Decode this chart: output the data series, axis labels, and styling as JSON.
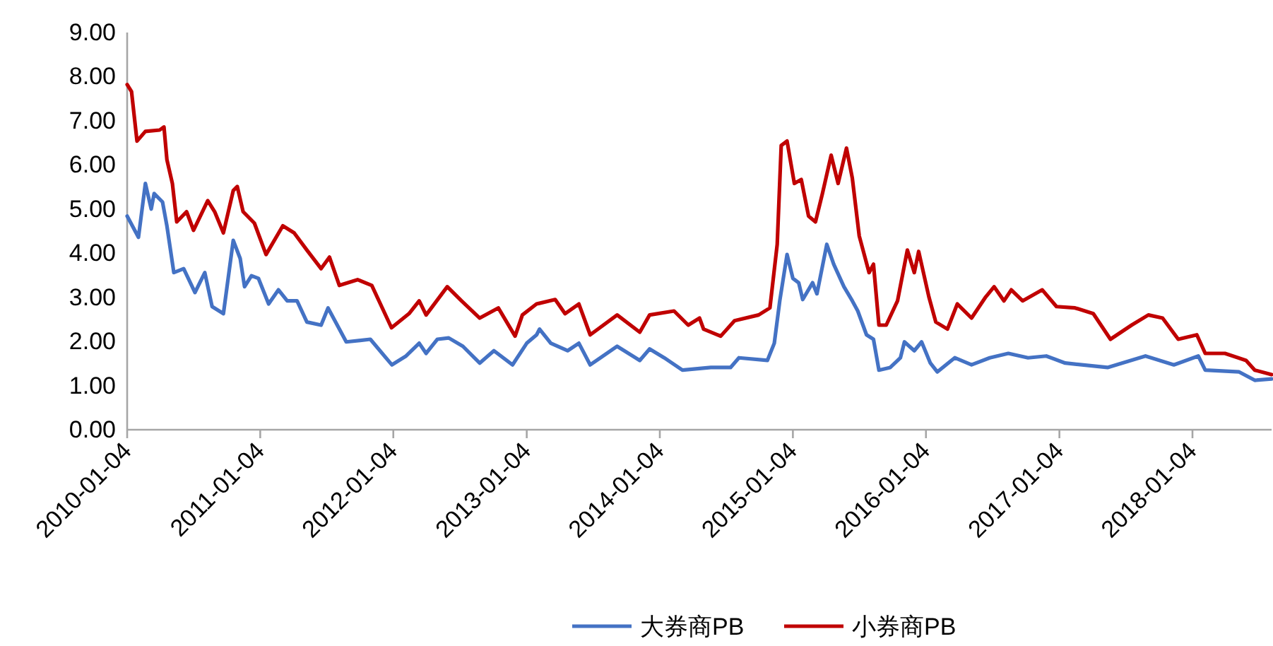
{
  "chart_data": {
    "type": "line",
    "legend": "bottom",
    "grid": false,
    "marker": "none",
    "line_style": "solid",
    "xlim": [
      "2010-01-04",
      "2018-08-09"
    ],
    "xticks": [
      "2010-01-04",
      "2011-01-04",
      "2012-01-04",
      "2013-01-04",
      "2014-01-04",
      "2015-01-04",
      "2016-01-04",
      "2017-01-04",
      "2018-01-04"
    ],
    "ylim": [
      0,
      9
    ],
    "yticks": [
      {
        "value": 0,
        "label": "0.00"
      },
      {
        "value": 1,
        "label": "1.00"
      },
      {
        "value": 2,
        "label": "2.00"
      },
      {
        "value": 3,
        "label": "3.00"
      },
      {
        "value": 4,
        "label": "4.00"
      },
      {
        "value": 5,
        "label": "5.00"
      },
      {
        "value": 6,
        "label": "6.00"
      },
      {
        "value": 7,
        "label": "7.00"
      },
      {
        "value": 8,
        "label": "8.00"
      },
      {
        "value": 9,
        "label": "9.00"
      }
    ],
    "series": [
      {
        "name": "大券商PB",
        "color": "#4472c4",
        "x": [
          "2010-01-04",
          "2010-02-04",
          "2010-02-23",
          "2010-03-11",
          "2010-03-19",
          "2010-04-11",
          "2010-04-23",
          "2010-05-12",
          "2010-06-08",
          "2010-07-09",
          "2010-08-05",
          "2010-08-25",
          "2010-09-25",
          "2010-10-22",
          "2010-11-10",
          "2010-11-22",
          "2010-12-11",
          "2010-12-30",
          "2011-01-27",
          "2011-02-23",
          "2011-03-19",
          "2011-04-15",
          "2011-05-12",
          "2011-06-20",
          "2011-07-09",
          "2011-08-28",
          "2011-11-02",
          "2011-12-31",
          "2012-02-08",
          "2012-03-15",
          "2012-04-03",
          "2012-05-04",
          "2012-06-04",
          "2012-07-13",
          "2012-08-28",
          "2012-10-06",
          "2012-11-26",
          "2013-01-04",
          "2013-01-31",
          "2013-02-08",
          "2013-03-11",
          "2013-04-26",
          "2013-05-27",
          "2013-06-27",
          "2013-09-09",
          "2013-11-10",
          "2013-12-07",
          "2014-01-16",
          "2014-03-07",
          "2014-05-24",
          "2014-07-17",
          "2014-08-09",
          "2014-10-26",
          "2014-11-14",
          "2014-11-29",
          "2014-12-19",
          "2015-01-04",
          "2015-01-20",
          "2015-01-31",
          "2015-02-27",
          "2015-03-11",
          "2015-04-07",
          "2015-04-26",
          "2015-05-24",
          "2015-06-16",
          "2015-07-01",
          "2015-07-25",
          "2015-08-13",
          "2015-08-28",
          "2015-09-28",
          "2015-10-26",
          "2015-11-06",
          "2015-12-03",
          "2015-12-23",
          "2016-01-16",
          "2016-02-04",
          "2016-03-23",
          "2016-05-08",
          "2016-06-27",
          "2016-08-17",
          "2016-10-10",
          "2016-11-29",
          "2017-01-20",
          "2017-05-16",
          "2017-08-28",
          "2017-11-14",
          "2018-01-20",
          "2018-02-08",
          "2018-05-12",
          "2018-06-24",
          "2018-08-09"
        ],
        "values": [
          4.84,
          4.36,
          5.58,
          5.0,
          5.35,
          5.16,
          4.62,
          3.56,
          3.65,
          3.11,
          3.56,
          2.79,
          2.63,
          4.29,
          3.88,
          3.24,
          3.49,
          3.43,
          2.85,
          3.17,
          2.92,
          2.92,
          2.44,
          2.37,
          2.76,
          1.99,
          2.05,
          1.47,
          1.67,
          1.96,
          1.73,
          2.05,
          2.08,
          1.89,
          1.51,
          1.79,
          1.47,
          1.96,
          2.15,
          2.28,
          1.96,
          1.79,
          1.96,
          1.47,
          1.89,
          1.57,
          1.83,
          1.63,
          1.35,
          1.41,
          1.41,
          1.63,
          1.57,
          1.96,
          2.92,
          3.97,
          3.43,
          3.33,
          2.95,
          3.33,
          3.08,
          4.2,
          3.75,
          3.24,
          2.92,
          2.69,
          2.15,
          2.05,
          1.35,
          1.41,
          1.63,
          1.99,
          1.79,
          1.99,
          1.51,
          1.31,
          1.63,
          1.47,
          1.63,
          1.73,
          1.63,
          1.67,
          1.51,
          1.41,
          1.67,
          1.47,
          1.67,
          1.35,
          1.31,
          1.12,
          1.15
        ]
      },
      {
        "name": "小券商PB",
        "color": "#c00000",
        "x": [
          "2010-01-04",
          "2010-01-16",
          "2010-01-31",
          "2010-02-23",
          "2010-04-03",
          "2010-04-15",
          "2010-04-23",
          "2010-05-08",
          "2010-05-20",
          "2010-06-16",
          "2010-07-05",
          "2010-08-13",
          "2010-09-01",
          "2010-09-25",
          "2010-10-22",
          "2010-11-02",
          "2010-11-18",
          "2010-12-19",
          "2011-01-20",
          "2011-03-07",
          "2011-04-07",
          "2011-05-12",
          "2011-06-20",
          "2011-07-13",
          "2011-08-09",
          "2011-09-28",
          "2011-11-06",
          "2011-12-30",
          "2012-02-16",
          "2012-03-15",
          "2012-04-03",
          "2012-05-31",
          "2012-07-09",
          "2012-08-28",
          "2012-10-18",
          "2012-12-03",
          "2012-12-23",
          "2013-01-31",
          "2013-03-23",
          "2013-04-19",
          "2013-05-27",
          "2013-06-27",
          "2013-09-09",
          "2013-11-10",
          "2013-12-07",
          "2014-02-12",
          "2014-03-23",
          "2014-04-23",
          "2014-05-04",
          "2014-06-20",
          "2014-07-28",
          "2014-10-02",
          "2014-11-02",
          "2014-11-22",
          "2014-12-03",
          "2014-12-19",
          "2015-01-08",
          "2015-01-27",
          "2015-02-16",
          "2015-03-07",
          "2015-03-26",
          "2015-04-19",
          "2015-05-08",
          "2015-05-31",
          "2015-06-16",
          "2015-07-05",
          "2015-08-01",
          "2015-08-13",
          "2015-08-28",
          "2015-09-17",
          "2015-10-18",
          "2015-11-14",
          "2015-12-03",
          "2015-12-15",
          "2016-01-12",
          "2016-01-31",
          "2016-03-03",
          "2016-03-30",
          "2016-05-08",
          "2016-06-16",
          "2016-07-09",
          "2016-08-05",
          "2016-08-25",
          "2016-09-25",
          "2016-11-18",
          "2016-12-27",
          "2017-02-16",
          "2017-04-07",
          "2017-05-24",
          "2017-07-21",
          "2017-09-05",
          "2017-10-14",
          "2017-11-26",
          "2018-01-16",
          "2018-02-08",
          "2018-04-03",
          "2018-05-31",
          "2018-06-24",
          "2018-08-09"
        ],
        "values": [
          7.82,
          7.66,
          6.54,
          6.76,
          6.79,
          6.86,
          6.12,
          5.58,
          4.71,
          4.94,
          4.52,
          5.19,
          4.94,
          4.46,
          5.42,
          5.51,
          4.94,
          4.68,
          3.97,
          4.62,
          4.46,
          4.07,
          3.65,
          3.91,
          3.27,
          3.4,
          3.27,
          2.31,
          2.63,
          2.92,
          2.6,
          3.24,
          2.92,
          2.53,
          2.76,
          2.12,
          2.6,
          2.85,
          2.95,
          2.63,
          2.85,
          2.15,
          2.6,
          2.21,
          2.6,
          2.69,
          2.37,
          2.53,
          2.28,
          2.12,
          2.47,
          2.6,
          2.76,
          4.2,
          6.44,
          6.54,
          5.58,
          5.67,
          4.84,
          4.71,
          5.35,
          6.22,
          5.58,
          6.38,
          5.7,
          4.39,
          3.56,
          3.75,
          2.37,
          2.37,
          2.92,
          4.07,
          3.56,
          4.04,
          3.01,
          2.44,
          2.28,
          2.85,
          2.53,
          3.01,
          3.24,
          2.92,
          3.17,
          2.92,
          3.17,
          2.79,
          2.76,
          2.63,
          2.05,
          2.37,
          2.6,
          2.53,
          2.05,
          2.15,
          1.73,
          1.73,
          1.57,
          1.35,
          1.25
        ]
      }
    ]
  }
}
